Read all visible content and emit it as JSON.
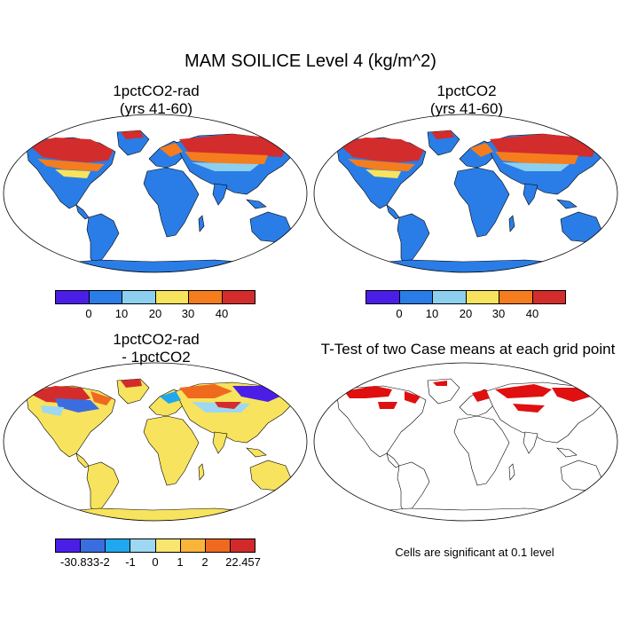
{
  "figure": {
    "title": "MAM SOILICE Level 4 (kg/m^2)"
  },
  "panels": {
    "top_left": {
      "title_line1": "1pctCO2-rad",
      "title_line2": "(yrs 41-60)"
    },
    "top_right": {
      "title_line1": "1pctCO2",
      "title_line2": "(yrs 41-60)"
    },
    "bottom_left": {
      "title_line1": "1pctCO2-rad",
      "title_line2": "- 1pctCO2"
    },
    "bottom_right": {
      "title_line1": "T-Test of two Case means at each grid point"
    }
  },
  "colorbars": {
    "abs": {
      "colors": [
        "#4b1ee8",
        "#2a7de6",
        "#8ccfee",
        "#f7e35d",
        "#f57d1e",
        "#d32c2c"
      ],
      "labels": [
        "0",
        "10",
        "20",
        "30",
        "40"
      ]
    },
    "diff": {
      "colors": [
        "#4b1ee8",
        "#3a6ee0",
        "#1fa8ef",
        "#9ed7f2",
        "#f8e670",
        "#f9b53a",
        "#ef6a1f",
        "#d22a2a"
      ],
      "labels": [
        "-30.833",
        "-2",
        "-1",
        "0",
        "1",
        "2",
        "22.457"
      ]
    }
  },
  "footnote": "Cells are significant at 0.1 level",
  "map_colors": {
    "ocean": "#ffffff",
    "land_abs": "#2a7de6",
    "land_diff": "#f7e35d",
    "sig": "#e01010"
  }
}
